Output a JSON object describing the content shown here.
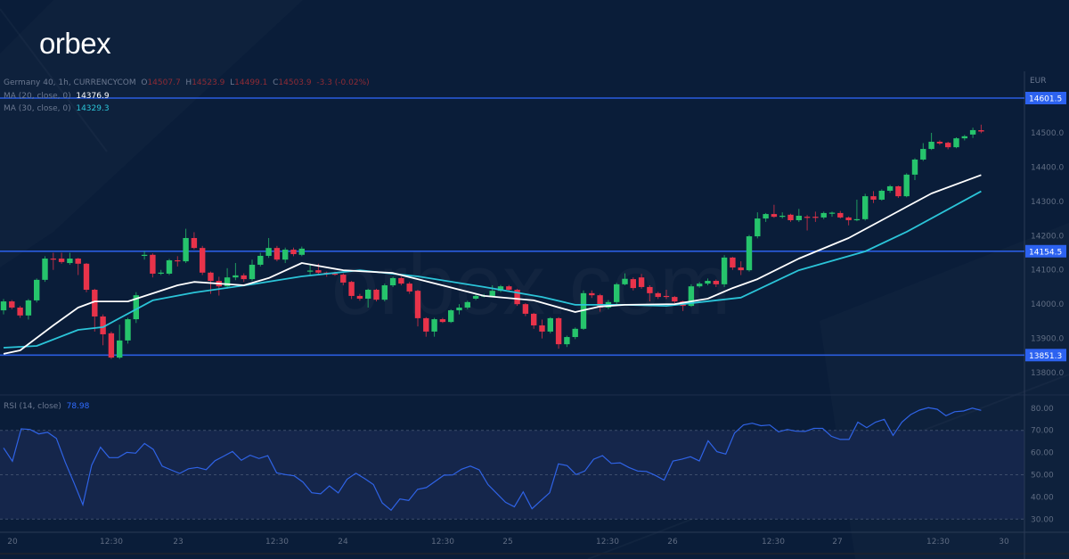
{
  "brand": {
    "logo": "orbex",
    "watermark": "orbex.com"
  },
  "legend": {
    "symbol": "Germany 40, 1h, CURRENCYCOM",
    "open_label": "O",
    "open": "14507.7",
    "high_label": "H",
    "high": "14523.9",
    "low_label": "L",
    "low": "14499.1",
    "close_label": "C",
    "close": "14503.9",
    "change": "-3.3 (-0.02%)",
    "ma20_label": "MA (20, close, 0)",
    "ma20_value": "14376.9",
    "ma30_label": "MA (30, close, 0)",
    "ma30_value": "14329.3"
  },
  "rsi_legend": {
    "label": "RSI (14, close)",
    "value": "78.98"
  },
  "currency": "EUR",
  "colors": {
    "background": "#0a1d39",
    "up": "#26c46c",
    "down": "#e8334a",
    "ma20": "#ffffff",
    "ma30": "#2bc4d8",
    "levels": "#2a5de0",
    "rsi": "#2f63e6",
    "rsi_band": "#15264b"
  },
  "chart_data": [
    {
      "type": "candlestick",
      "title": "Germany 40, 1h, CURRENCYCOM",
      "ylabel": "EUR",
      "ylim": [
        13760,
        14640
      ],
      "y_ticks": [
        "14500.0",
        "14400.0",
        "14300.0",
        "14200.0",
        "14100.0",
        "14000.0",
        "13900.0",
        "13800.0"
      ],
      "x_ticks": [
        "20",
        "12:30",
        "23",
        "12:30",
        "24",
        "12:30",
        "25",
        "12:30",
        "26",
        "12:30",
        "27",
        "12:30",
        "30"
      ],
      "levels": [
        {
          "value": 14601.5,
          "label": "14601.5"
        },
        {
          "value": 14154.5,
          "label": "14154.5"
        },
        {
          "value": 13851.3,
          "label": "13851.3"
        }
      ],
      "ohlc": [
        [
          13982,
          14015,
          13970,
          14008
        ],
        [
          14008,
          14012,
          13985,
          13990
        ],
        [
          13990,
          13995,
          13960,
          13967
        ],
        [
          13967,
          14015,
          13955,
          14011
        ],
        [
          14011,
          14075,
          14005,
          14071
        ],
        [
          14071,
          14140,
          14065,
          14133
        ],
        [
          14133,
          14150,
          14100,
          14130
        ],
        [
          14133,
          14150,
          14118,
          14123
        ],
        [
          14120,
          14150,
          14115,
          14133
        ],
        [
          14133,
          14135,
          14085,
          14118
        ],
        [
          14118,
          14120,
          14035,
          14042
        ],
        [
          14042,
          14045,
          13920,
          13964
        ],
        [
          13964,
          13970,
          13880,
          13912
        ],
        [
          13915,
          13920,
          13840,
          13844
        ],
        [
          13844,
          13940,
          13840,
          13894
        ],
        [
          13894,
          13960,
          13885,
          13956
        ],
        [
          13956,
          14035,
          13945,
          14026
        ],
        [
          14141,
          14155,
          14130,
          14144
        ],
        [
          14144,
          14148,
          14078,
          14089
        ],
        [
          14089,
          14100,
          14085,
          14092
        ],
        [
          14089,
          14132,
          14085,
          14128
        ],
        [
          14128,
          14140,
          14110,
          14125
        ],
        [
          14125,
          14220,
          14120,
          14193
        ],
        [
          14193,
          14210,
          14160,
          14164
        ],
        [
          14164,
          14170,
          14085,
          14092
        ],
        [
          14092,
          14095,
          14030,
          14068
        ],
        [
          14068,
          14080,
          14025,
          14052
        ],
        [
          14052,
          14105,
          14045,
          14078
        ],
        [
          14078,
          14120,
          14070,
          14084
        ],
        [
          14084,
          14090,
          14065,
          14073
        ],
        [
          14073,
          14130,
          14068,
          14115
        ],
        [
          14115,
          14150,
          14110,
          14141
        ],
        [
          14141,
          14193,
          14135,
          14164
        ],
        [
          14164,
          14170,
          14125,
          14130
        ],
        [
          14130,
          14165,
          14120,
          14159
        ],
        [
          14159,
          14165,
          14140,
          14146
        ],
        [
          14144,
          14168,
          14140,
          14162
        ],
        [
          14095,
          14115,
          14085,
          14098
        ],
        [
          14099,
          14118,
          14088,
          14092
        ],
        [
          14092,
          14095,
          14080,
          14089
        ],
        [
          14089,
          14095,
          14083,
          14087
        ],
        [
          14086,
          14090,
          14055,
          14063
        ],
        [
          14065,
          14068,
          14015,
          14024
        ],
        [
          14024,
          14030,
          14010,
          14016
        ],
        [
          14016,
          14045,
          13990,
          14042
        ],
        [
          14042,
          14045,
          14008,
          14013
        ],
        [
          14013,
          14060,
          14008,
          14055
        ],
        [
          14055,
          14080,
          14050,
          14076
        ],
        [
          14076,
          14080,
          14055,
          14060
        ],
        [
          14060,
          14065,
          14030,
          14037
        ],
        [
          14039,
          14042,
          13935,
          13959
        ],
        [
          13959,
          13962,
          13905,
          13920
        ],
        [
          13920,
          13960,
          13905,
          13956
        ],
        [
          13956,
          13960,
          13945,
          13948
        ],
        [
          13948,
          13985,
          13945,
          13982
        ],
        [
          13982,
          14000,
          13970,
          13990
        ],
        [
          13990,
          14010,
          13985,
          14006
        ],
        [
          14016,
          14028,
          14012,
          14024
        ],
        [
          14023,
          14030,
          14020,
          14025
        ],
        [
          14024,
          14055,
          14020,
          14039
        ],
        [
          14039,
          14056,
          14035,
          14052
        ],
        [
          14052,
          14056,
          14038,
          14042
        ],
        [
          14042,
          14045,
          13995,
          14000
        ],
        [
          14000,
          14003,
          13965,
          13972
        ],
        [
          13972,
          13975,
          13928,
          13938
        ],
        [
          13938,
          13955,
          13900,
          13920
        ],
        [
          13920,
          13962,
          13915,
          13959
        ],
        [
          13959,
          13962,
          13870,
          13883
        ],
        [
          13883,
          13908,
          13875,
          13904
        ],
        [
          13904,
          13932,
          13898,
          13928
        ],
        [
          13928,
          14040,
          13925,
          14032
        ],
        [
          14032,
          14040,
          14018,
          14026
        ],
        [
          14026,
          14030,
          13978,
          13990
        ],
        [
          13990,
          14012,
          13985,
          14006
        ],
        [
          14006,
          14062,
          14000,
          14058
        ],
        [
          14058,
          14090,
          14055,
          14074
        ],
        [
          14073,
          14078,
          14040,
          14047
        ],
        [
          14078,
          14088,
          14045,
          14050
        ],
        [
          14050,
          14055,
          14008,
          14032
        ],
        [
          14032,
          14036,
          14015,
          14021
        ],
        [
          14024,
          14042,
          14015,
          14021
        ],
        [
          14021,
          14024,
          14003,
          14008
        ],
        [
          14008,
          14010,
          13980,
          13995
        ],
        [
          13995,
          14058,
          13992,
          14052
        ],
        [
          14052,
          14065,
          14048,
          14060
        ],
        [
          14060,
          14075,
          14055,
          14068
        ],
        [
          14068,
          14072,
          14050,
          14058
        ],
        [
          14058,
          14143,
          14050,
          14136
        ],
        [
          14136,
          14138,
          14100,
          14107
        ],
        [
          14107,
          14125,
          14085,
          14099
        ],
        [
          14099,
          14202,
          14095,
          14198
        ],
        [
          14198,
          14268,
          14192,
          14250
        ],
        [
          14250,
          14266,
          14240,
          14263
        ],
        [
          14263,
          14290,
          14252,
          14255
        ],
        [
          14255,
          14268,
          14250,
          14258
        ],
        [
          14261,
          14264,
          14240,
          14245
        ],
        [
          14245,
          14278,
          14240,
          14258
        ],
        [
          14255,
          14260,
          14215,
          14253
        ],
        [
          14255,
          14270,
          14240,
          14253
        ],
        [
          14253,
          14270,
          14248,
          14266
        ],
        [
          14265,
          14270,
          14255,
          14267
        ],
        [
          14266,
          14272,
          14250,
          14253
        ],
        [
          14253,
          14256,
          14230,
          14245
        ],
        [
          14246,
          14305,
          14242,
          14248
        ],
        [
          14248,
          14322,
          14244,
          14315
        ],
        [
          14315,
          14330,
          14295,
          14305
        ],
        [
          14305,
          14335,
          14302,
          14331
        ],
        [
          14331,
          14348,
          14325,
          14344
        ],
        [
          14344,
          14346,
          14310,
          14315
        ],
        [
          14315,
          14382,
          14312,
          14378
        ],
        [
          14378,
          14426,
          14362,
          14422
        ],
        [
          14422,
          14470,
          14418,
          14453
        ],
        [
          14453,
          14500,
          14450,
          14474
        ],
        [
          14474,
          14478,
          14465,
          14469
        ],
        [
          14471,
          14474,
          14452,
          14458
        ],
        [
          14458,
          14487,
          14455,
          14484
        ],
        [
          14484,
          14494,
          14478,
          14490
        ],
        [
          14495,
          14515,
          14485,
          14508
        ],
        [
          14507.7,
          14523.9,
          14499.1,
          14503.9
        ]
      ],
      "ma20": [
        [
          0,
          13855
        ],
        [
          2,
          13865
        ],
        [
          6,
          13938
        ],
        [
          9,
          13990
        ],
        [
          11,
          14008
        ],
        [
          15,
          14008
        ],
        [
          21,
          14055
        ],
        [
          23,
          14065
        ],
        [
          29,
          14055
        ],
        [
          32,
          14076
        ],
        [
          36,
          14120
        ],
        [
          41,
          14099
        ],
        [
          47,
          14091
        ],
        [
          50,
          14073
        ],
        [
          58,
          14024
        ],
        [
          64,
          14011
        ],
        [
          69,
          13977
        ],
        [
          72,
          13993
        ],
        [
          75,
          13998
        ],
        [
          81,
          14000
        ],
        [
          85,
          14016
        ],
        [
          88,
          14047
        ],
        [
          91,
          14073
        ],
        [
          96,
          14133
        ],
        [
          102,
          14193
        ],
        [
          107,
          14258
        ],
        [
          112,
          14323
        ],
        [
          118,
          14376.9
        ]
      ],
      "ma30": [
        [
          0,
          13873
        ],
        [
          4,
          13878
        ],
        [
          9,
          13925
        ],
        [
          12,
          13933
        ],
        [
          18,
          14011
        ],
        [
          23,
          14034
        ],
        [
          30,
          14058
        ],
        [
          36,
          14081
        ],
        [
          43,
          14099
        ],
        [
          50,
          14081
        ],
        [
          58,
          14050
        ],
        [
          65,
          14021
        ],
        [
          69,
          13998
        ],
        [
          75,
          13998
        ],
        [
          80,
          13995
        ],
        [
          89,
          14019
        ],
        [
          96,
          14099
        ],
        [
          104,
          14154
        ],
        [
          109,
          14211
        ],
        [
          118,
          14329.3
        ]
      ]
    },
    {
      "type": "line",
      "title": "RSI (14, close)",
      "ylim": [
        20,
        90
      ],
      "y_ticks": [
        "80.00",
        "70.00",
        "60.00",
        "50.00",
        "40.00",
        "30.00"
      ],
      "bands": [
        30,
        50,
        70
      ],
      "values": [
        62.1,
        56.1,
        70.7,
        70.4,
        68.4,
        69.1,
        66.4,
        55.7,
        46.3,
        36.5,
        54.3,
        62.4,
        57.7,
        57.7,
        60.1,
        59.7,
        64.1,
        61.4,
        53.9,
        52.2,
        50.6,
        52.7,
        53.3,
        52.3,
        56.3,
        58.4,
        60.5,
        56.5,
        58.8,
        57.3,
        58.6,
        50.9,
        50.1,
        49.5,
        46.7,
        41.9,
        41.4,
        45.0,
        41.8,
        48.0,
        50.7,
        48.3,
        45.6,
        37.3,
        34.0,
        39.1,
        38.4,
        43.4,
        44.2,
        47.0,
        49.8,
        49.9,
        52.5,
        53.9,
        52.2,
        45.6,
        41.6,
        37.6,
        35.6,
        42.3,
        34.7,
        38.3,
        41.9,
        54.9,
        54.1,
        50.1,
        51.7,
        57.0,
        58.6,
        55.1,
        55.4,
        53.3,
        51.7,
        51.5,
        49.7,
        47.6,
        56.2,
        57.0,
        58.1,
        56.2,
        65.3,
        60.4,
        59.3,
        68.8,
        72.4,
        73.2,
        72.1,
        72.4,
        69.3,
        70.4,
        69.6,
        69.5,
        70.9,
        70.9,
        67.3,
        65.9,
        65.9,
        73.7,
        71.2,
        73.7,
        75.0,
        67.7,
        73.7,
        77.1,
        79.1,
        80.2,
        79.5,
        76.6,
        78.4,
        78.7,
        80.0,
        78.98
      ]
    }
  ]
}
